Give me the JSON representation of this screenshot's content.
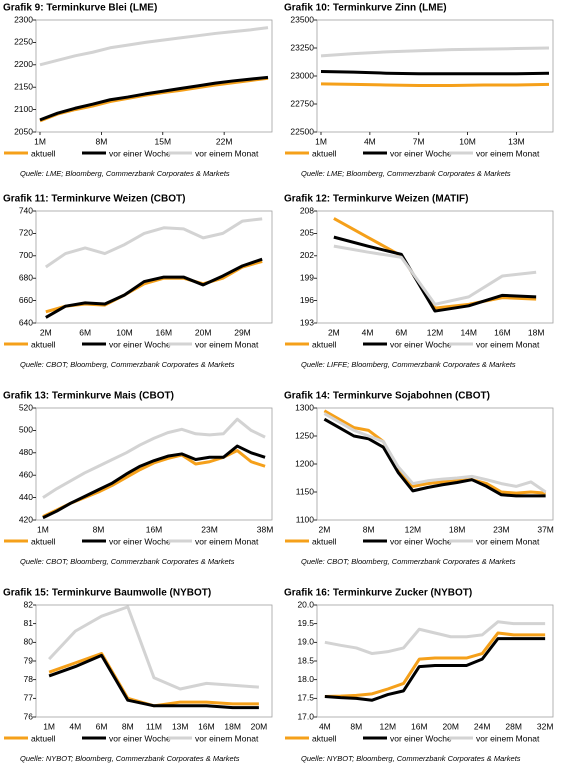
{
  "chart_data": [
    {
      "type": "line",
      "title": "Grafik 9: Terminkurve Blei (LME)",
      "source": "Quelle: LME; Bloomberg, Commerzbank Corporates & Markets",
      "x": [
        1,
        3,
        5,
        7,
        9,
        11,
        13,
        15,
        17,
        19,
        21,
        23,
        25,
        27
      ],
      "xlim": [
        1,
        27
      ],
      "xticks": [
        {
          "value": 1,
          "label": "1M"
        },
        {
          "value": 8,
          "label": "8M"
        },
        {
          "value": 15,
          "label": "15M"
        },
        {
          "value": 22,
          "label": "22M"
        }
      ],
      "ylim": [
        2050,
        2300
      ],
      "yticks": [
        2050,
        2100,
        2150,
        2200,
        2250,
        2300
      ],
      "series": [
        {
          "name": "aktuell",
          "color": "#f5a01a",
          "values": [
            2075,
            2090,
            2100,
            2108,
            2118,
            2125,
            2132,
            2138,
            2143,
            2149,
            2155,
            2160,
            2165,
            2170
          ]
        },
        {
          "name": "vor einer Woche",
          "color": "#000000",
          "values": [
            2077,
            2092,
            2103,
            2112,
            2122,
            2128,
            2135,
            2141,
            2147,
            2153,
            2159,
            2164,
            2168,
            2172
          ]
        },
        {
          "name": "vor einem Monat",
          "color": "#d3d3d3",
          "values": [
            2200,
            2210,
            2220,
            2228,
            2238,
            2244,
            2250,
            2255,
            2260,
            2265,
            2270,
            2274,
            2278,
            2283
          ]
        }
      ]
    },
    {
      "type": "line",
      "title": "Grafik 10: Terminkurve Zinn (LME)",
      "source": "Quelle: LME; Bloomberg, Commerzbank Corporates & Markets",
      "x": [
        1,
        3,
        5,
        7,
        9,
        11,
        13,
        15
      ],
      "xlim": [
        1,
        15
      ],
      "xticks": [
        {
          "value": 1,
          "label": "1M"
        },
        {
          "value": 4,
          "label": "4M"
        },
        {
          "value": 7,
          "label": "7M"
        },
        {
          "value": 10,
          "label": "10M"
        },
        {
          "value": 13,
          "label": "13M"
        }
      ],
      "ylim": [
        22500,
        23500
      ],
      "yticks": [
        22500,
        22750,
        23000,
        23250,
        23500
      ],
      "series": [
        {
          "name": "aktuell",
          "color": "#f5a01a",
          "values": [
            22930,
            22925,
            22920,
            22915,
            22915,
            22920,
            22920,
            22925
          ]
        },
        {
          "name": "vor einer Woche",
          "color": "#000000",
          "values": [
            23040,
            23035,
            23025,
            23020,
            23020,
            23020,
            23020,
            23025
          ]
        },
        {
          "name": "vor einem Monat",
          "color": "#d3d3d3",
          "values": [
            23180,
            23200,
            23215,
            23225,
            23235,
            23240,
            23245,
            23250
          ]
        }
      ]
    },
    {
      "type": "line",
      "title": "Grafik 11: Terminkurve Weizen (CBOT)",
      "source": "Quelle: CBOT; Bloomberg, Commerzbank Corporates & Markets",
      "categories": [
        "2M",
        null,
        "6M",
        null,
        "10M",
        null,
        "16M",
        null,
        "20M",
        null,
        "29M",
        null
      ],
      "ylim": [
        640,
        740
      ],
      "yticks": [
        640,
        660,
        680,
        700,
        720,
        740
      ],
      "series": [
        {
          "name": "aktuell",
          "color": "#f5a01a",
          "values": [
            650,
            655,
            657,
            656,
            665,
            675,
            680,
            680,
            675,
            680,
            690,
            695
          ]
        },
        {
          "name": "vor einer Woche",
          "color": "#000000",
          "values": [
            645,
            655,
            658,
            657,
            665,
            677,
            681,
            681,
            674,
            682,
            691,
            697
          ]
        },
        {
          "name": "vor einem Monat",
          "color": "#d3d3d3",
          "values": [
            690,
            702,
            707,
            702,
            710,
            720,
            725,
            724,
            716,
            720,
            731,
            733
          ]
        }
      ]
    },
    {
      "type": "line",
      "title": "Grafik 12: Terminkurve Weizen (MATIF)",
      "source": "Quelle: LIFFE; Bloomberg, Commerzbank Corporates & Markets",
      "categories": [
        "2M",
        "4M",
        "6M",
        "12M",
        "14M",
        "16M",
        "18M"
      ],
      "ylim": [
        193,
        208
      ],
      "yticks": [
        193,
        196,
        199,
        202,
        205,
        208
      ],
      "series": [
        {
          "name": "aktuell",
          "color": "#f5a01a",
          "values": [
            207,
            204.5,
            202,
            195,
            195.5,
            196.4,
            196.2
          ]
        },
        {
          "name": "vor einer Woche",
          "color": "#000000",
          "values": [
            204.5,
            203.3,
            202.2,
            194.6,
            195.3,
            196.7,
            196.5
          ]
        },
        {
          "name": "vor einem Monat",
          "color": "#d3d3d3",
          "values": [
            203.3,
            202.5,
            201.8,
            195.5,
            196.5,
            199.3,
            199.8
          ]
        }
      ]
    },
    {
      "type": "line",
      "title": "Grafik 13: Terminkurve Mais (CBOT)",
      "source": "Quelle: CBOT; Bloomberg, Commerzbank Corporates & Markets",
      "categories": [
        "1M",
        null,
        null,
        null,
        "8M",
        null,
        null,
        null,
        "16M",
        null,
        null,
        null,
        "23M",
        null,
        null,
        null,
        "38M"
      ],
      "ylim": [
        420,
        520
      ],
      "yticks": [
        420,
        440,
        460,
        480,
        500,
        520
      ],
      "series": [
        {
          "name": "aktuell",
          "color": "#f5a01a",
          "values": [
            423,
            429,
            435,
            440,
            445,
            451,
            458,
            465,
            471,
            475,
            478,
            470,
            472,
            476,
            482,
            472,
            468
          ]
        },
        {
          "name": "vor einer Woche",
          "color": "#000000",
          "values": [
            422,
            428,
            435,
            441,
            447,
            453,
            461,
            468,
            473,
            477,
            479,
            474,
            476,
            476,
            486,
            480,
            476
          ]
        },
        {
          "name": "vor einem Monat",
          "color": "#d3d3d3",
          "values": [
            440,
            448,
            455,
            462,
            468,
            474,
            480,
            487,
            493,
            498,
            501,
            497,
            496,
            497,
            510,
            500,
            494
          ]
        }
      ]
    },
    {
      "type": "line",
      "title": "Grafik 14: Terminkurve Sojabohnen (CBOT)",
      "source": "Quelle: CBOT; Bloomberg, Commerzbank Corporates & Markets",
      "categories": [
        "2M",
        null,
        null,
        "8M",
        null,
        null,
        "12M",
        null,
        null,
        "18M",
        null,
        null,
        "23M",
        null,
        null,
        "37M"
      ],
      "ylim": [
        1100,
        1300
      ],
      "yticks": [
        1100,
        1150,
        1200,
        1250,
        1300
      ],
      "series": [
        {
          "name": "aktuell",
          "color": "#f5a01a",
          "values": [
            1295,
            1280,
            1265,
            1260,
            1240,
            1190,
            1160,
            1165,
            1168,
            1170,
            1172,
            1165,
            1150,
            1148,
            1150,
            1148
          ]
        },
        {
          "name": "vor einer Woche",
          "color": "#000000",
          "values": [
            1280,
            1265,
            1250,
            1245,
            1230,
            1185,
            1152,
            1158,
            1163,
            1167,
            1172,
            1160,
            1145,
            1143,
            1143,
            1143
          ]
        },
        {
          "name": "vor einem Monat",
          "color": "#d3d3d3",
          "values": [
            1290,
            1275,
            1260,
            1250,
            1240,
            1195,
            1165,
            1170,
            1173,
            1175,
            1178,
            1172,
            1165,
            1160,
            1168,
            1150
          ]
        }
      ]
    },
    {
      "type": "line",
      "title": "Grafik 15: Terminkurve Baumwolle (NYBOT)",
      "source": "Quelle: NYBOT; Bloomberg, Commerzbank Corporates & Markets",
      "categories": [
        "1M",
        "4M",
        "6M",
        "8M",
        "11M",
        "13M",
        "16M",
        "18M",
        "20M"
      ],
      "ylim": [
        76,
        82
      ],
      "yticks": [
        76,
        77,
        78,
        79,
        80,
        81,
        82
      ],
      "series": [
        {
          "name": "aktuell",
          "color": "#f5a01a",
          "values": [
            78.4,
            78.9,
            79.4,
            77.0,
            76.6,
            76.8,
            76.8,
            76.7,
            76.7
          ]
        },
        {
          "name": "vor einer Woche",
          "color": "#000000",
          "values": [
            78.2,
            78.7,
            79.3,
            76.9,
            76.6,
            76.6,
            76.6,
            76.5,
            76.5
          ]
        },
        {
          "name": "vor einem Monat",
          "color": "#d3d3d3",
          "values": [
            79.1,
            80.6,
            81.4,
            81.9,
            78.1,
            77.5,
            77.8,
            77.7,
            77.6
          ]
        }
      ]
    },
    {
      "type": "line",
      "title": "Grafik 16: Terminkurve Zucker (NYBOT)",
      "source": "Quelle: NYBOT; Bloomberg, Commerzbank Corporates & Markets",
      "categories": [
        "4M",
        null,
        "8M",
        null,
        "12M",
        null,
        "16M",
        null,
        "20M",
        null,
        "24M",
        null,
        "28M",
        null,
        "32M"
      ],
      "ylim": [
        17,
        20
      ],
      "yticks": [
        {
          "value": 17,
          "label": "17.0"
        },
        17.5,
        {
          "value": 18,
          "label": "18.0"
        },
        18.5,
        {
          "value": 19,
          "label": "19.0"
        },
        19.5,
        {
          "value": 20,
          "label": "20.0"
        }
      ],
      "series": [
        {
          "name": "aktuell",
          "color": "#f5a01a",
          "values": [
            17.55,
            17.56,
            17.58,
            17.62,
            17.75,
            17.9,
            18.55,
            18.58,
            18.58,
            18.58,
            18.7,
            19.25,
            19.2,
            19.2,
            19.2
          ]
        },
        {
          "name": "vor einer Woche",
          "color": "#000000",
          "values": [
            17.55,
            17.52,
            17.5,
            17.45,
            17.6,
            17.7,
            18.35,
            18.38,
            18.38,
            18.38,
            18.55,
            19.1,
            19.1,
            19.1,
            19.1
          ]
        },
        {
          "name": "vor einem Monat",
          "color": "#d3d3d3",
          "values": [
            19.0,
            18.92,
            18.85,
            18.7,
            18.75,
            18.85,
            19.35,
            19.25,
            19.15,
            19.15,
            19.2,
            19.55,
            19.5,
            19.5,
            19.5
          ]
        }
      ]
    }
  ]
}
